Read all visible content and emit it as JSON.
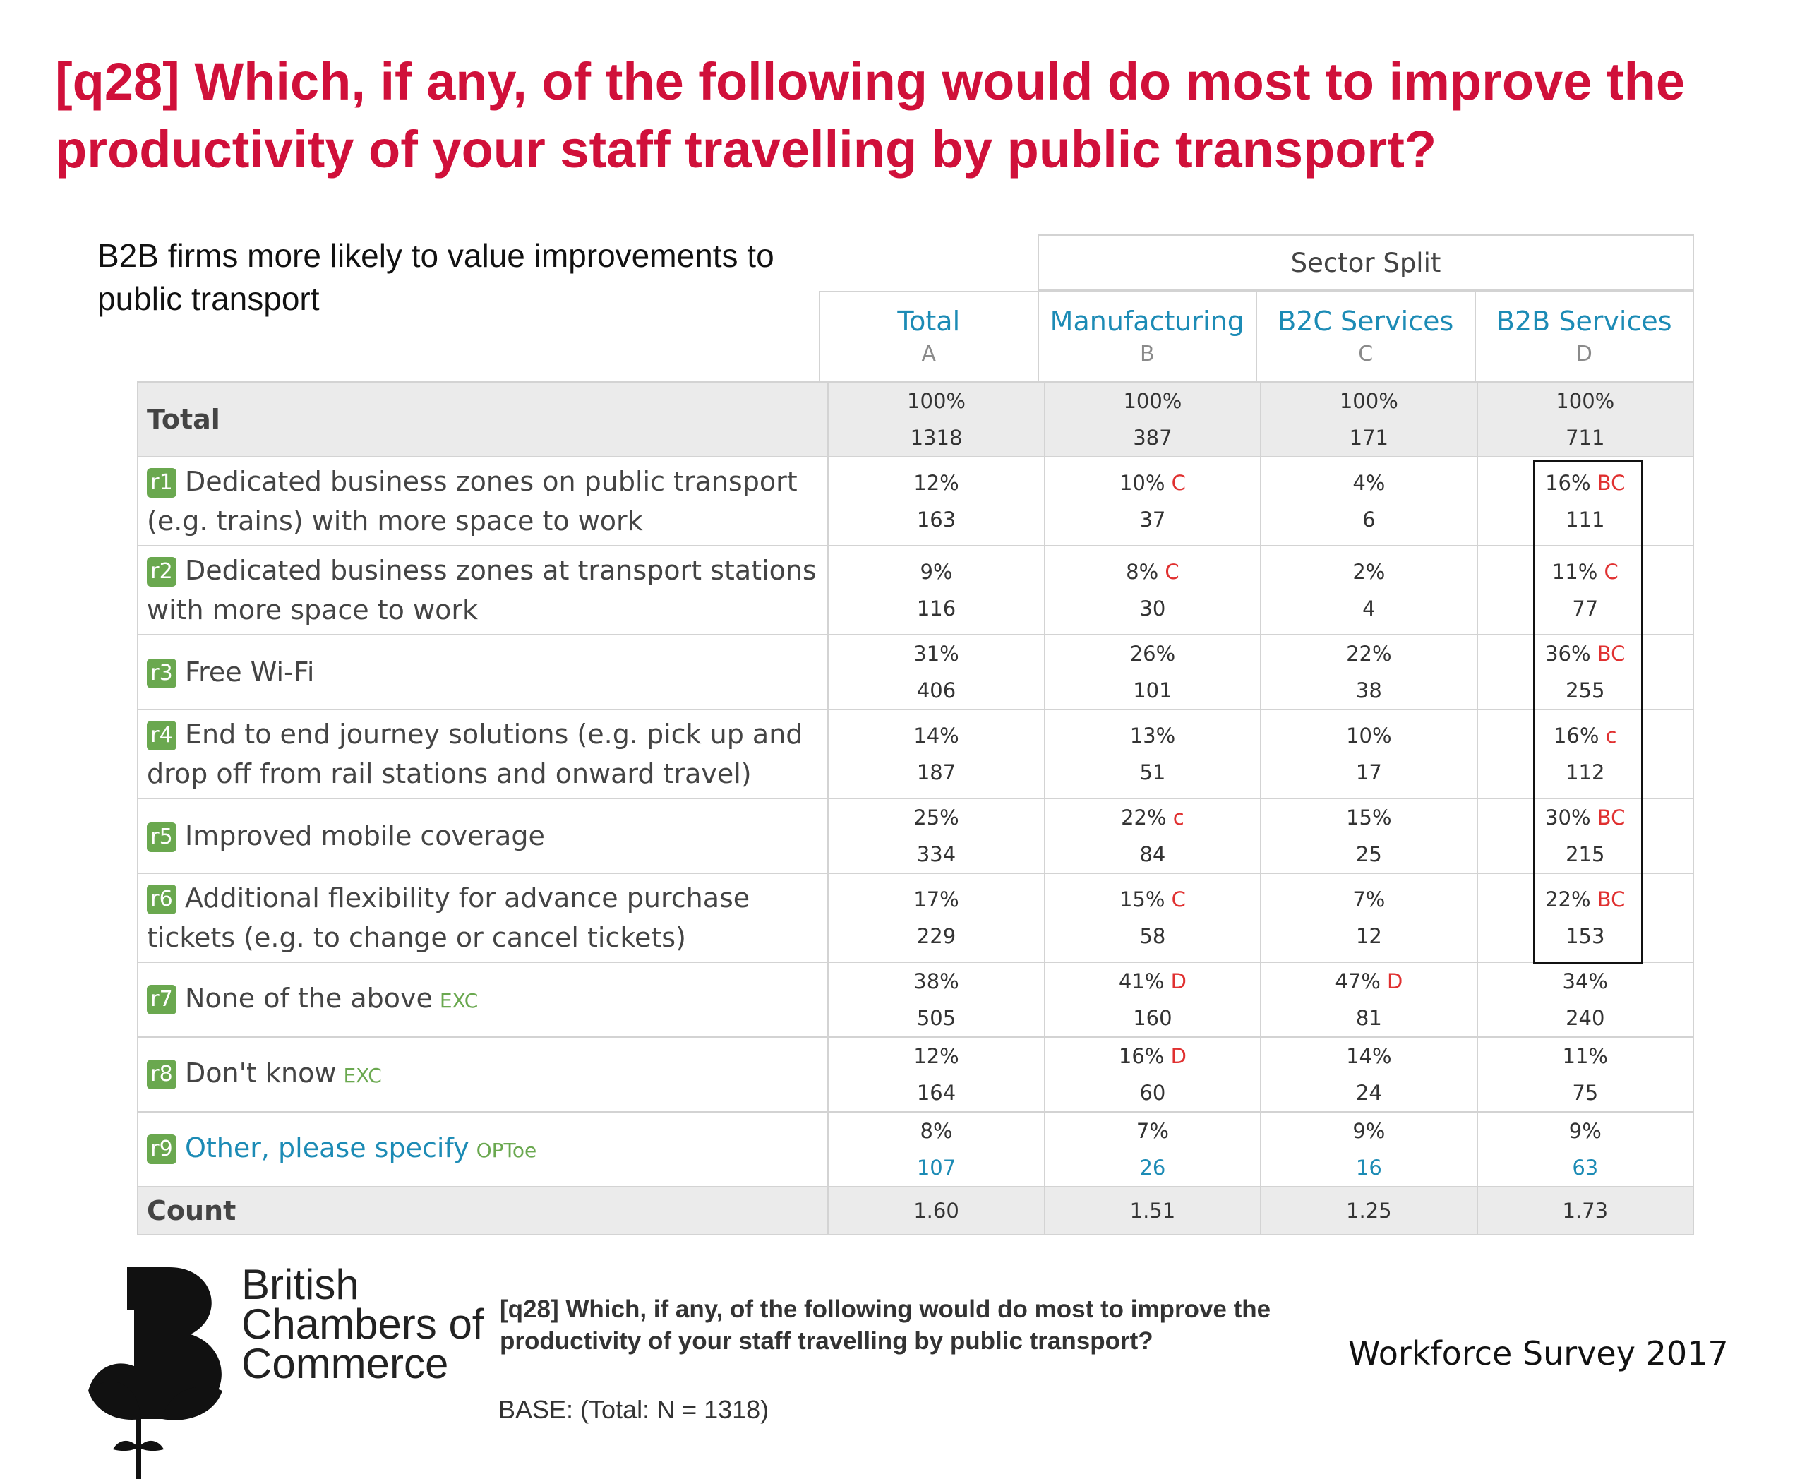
{
  "title": "[q28] Which, if any, of the following would do most to improve the productivity of your staff travelling by public transport?",
  "subtitle": "B2B firms more likely to value improvements to public transport",
  "sector_split_label": "Sector Split",
  "columns": [
    {
      "name": "Total",
      "letter": "A"
    },
    {
      "name": "Manufacturing",
      "letter": "B"
    },
    {
      "name": "B2C Services",
      "letter": "C"
    },
    {
      "name": "B2B Services",
      "letter": "D"
    }
  ],
  "total_row": {
    "label": "Total",
    "cells": [
      {
        "pct": "100%",
        "count": "1318"
      },
      {
        "pct": "100%",
        "count": "387"
      },
      {
        "pct": "100%",
        "count": "171"
      },
      {
        "pct": "100%",
        "count": "711"
      }
    ]
  },
  "rows": [
    {
      "tag": "r1",
      "label": "Dedicated business zones on public transport (e.g. trains) with more space to work",
      "suffix": "",
      "cells": [
        {
          "pct": "12%",
          "sig": "",
          "count": "163"
        },
        {
          "pct": "10%",
          "sig": "C",
          "count": "37"
        },
        {
          "pct": "4%",
          "sig": "",
          "count": "6"
        },
        {
          "pct": "16%",
          "sig": "BC",
          "count": "111"
        }
      ]
    },
    {
      "tag": "r2",
      "label": "Dedicated business zones at transport stations with more space to work",
      "suffix": "",
      "cells": [
        {
          "pct": "9%",
          "sig": "",
          "count": "116"
        },
        {
          "pct": "8%",
          "sig": "C",
          "count": "30"
        },
        {
          "pct": "2%",
          "sig": "",
          "count": "4"
        },
        {
          "pct": "11%",
          "sig": "C",
          "count": "77"
        }
      ]
    },
    {
      "tag": "r3",
      "label": "Free Wi-Fi",
      "suffix": "",
      "cells": [
        {
          "pct": "31%",
          "sig": "",
          "count": "406"
        },
        {
          "pct": "26%",
          "sig": "",
          "count": "101"
        },
        {
          "pct": "22%",
          "sig": "",
          "count": "38"
        },
        {
          "pct": "36%",
          "sig": "BC",
          "count": "255"
        }
      ]
    },
    {
      "tag": "r4",
      "label": "End to end journey solutions (e.g. pick up and drop off from rail stations and onward travel)",
      "suffix": "",
      "cells": [
        {
          "pct": "14%",
          "sig": "",
          "count": "187"
        },
        {
          "pct": "13%",
          "sig": "",
          "count": "51"
        },
        {
          "pct": "10%",
          "sig": "",
          "count": "17"
        },
        {
          "pct": "16%",
          "sig": "c",
          "count": "112"
        }
      ]
    },
    {
      "tag": "r5",
      "label": "Improved mobile coverage",
      "suffix": "",
      "cells": [
        {
          "pct": "25%",
          "sig": "",
          "count": "334"
        },
        {
          "pct": "22%",
          "sig": "c",
          "count": "84"
        },
        {
          "pct": "15%",
          "sig": "",
          "count": "25"
        },
        {
          "pct": "30%",
          "sig": "BC",
          "count": "215"
        }
      ]
    },
    {
      "tag": "r6",
      "label": "Additional flexibility for advance purchase tickets (e.g. to change or cancel tickets)",
      "suffix": "",
      "cells": [
        {
          "pct": "17%",
          "sig": "",
          "count": "229"
        },
        {
          "pct": "15%",
          "sig": "C",
          "count": "58"
        },
        {
          "pct": "7%",
          "sig": "",
          "count": "12"
        },
        {
          "pct": "22%",
          "sig": "BC",
          "count": "153"
        }
      ]
    },
    {
      "tag": "r7",
      "label": "None of the above",
      "suffix": "EXC",
      "cells": [
        {
          "pct": "38%",
          "sig": "",
          "count": "505"
        },
        {
          "pct": "41%",
          "sig": "D",
          "count": "160"
        },
        {
          "pct": "47%",
          "sig": "D",
          "count": "81"
        },
        {
          "pct": "34%",
          "sig": "",
          "count": "240"
        }
      ]
    },
    {
      "tag": "r8",
      "label": "Don't know",
      "suffix": "EXC",
      "cells": [
        {
          "pct": "12%",
          "sig": "",
          "count": "164"
        },
        {
          "pct": "16%",
          "sig": "D",
          "count": "60"
        },
        {
          "pct": "14%",
          "sig": "",
          "count": "24"
        },
        {
          "pct": "11%",
          "sig": "",
          "count": "75"
        }
      ]
    },
    {
      "tag": "r9",
      "label": "Other, please specify",
      "suffix": "OPToe",
      "cells": [
        {
          "pct": "8%",
          "sig": "",
          "count": "107"
        },
        {
          "pct": "7%",
          "sig": "",
          "count": "26"
        },
        {
          "pct": "9%",
          "sig": "",
          "count": "16"
        },
        {
          "pct": "9%",
          "sig": "",
          "count": "63"
        }
      ]
    }
  ],
  "count_row": {
    "label": "Count",
    "values": [
      "1.60",
      "1.51",
      "1.25",
      "1.73"
    ]
  },
  "footer": {
    "logo_lines": [
      "British",
      "Chambers of",
      "Commerce"
    ],
    "question": "[q28] Which, if any, of the following would do most to improve the productivity of your staff travelling by public transport?",
    "base": "BASE: (Total: N = 1318)",
    "survey_name": "Workforce Survey 2017"
  },
  "colors": {
    "title": "#d0103a",
    "header_blue": "#1c8bb5",
    "tag_green": "#6aa84f",
    "significance_red": "#e03030",
    "shade_grey": "#ebebeb"
  }
}
